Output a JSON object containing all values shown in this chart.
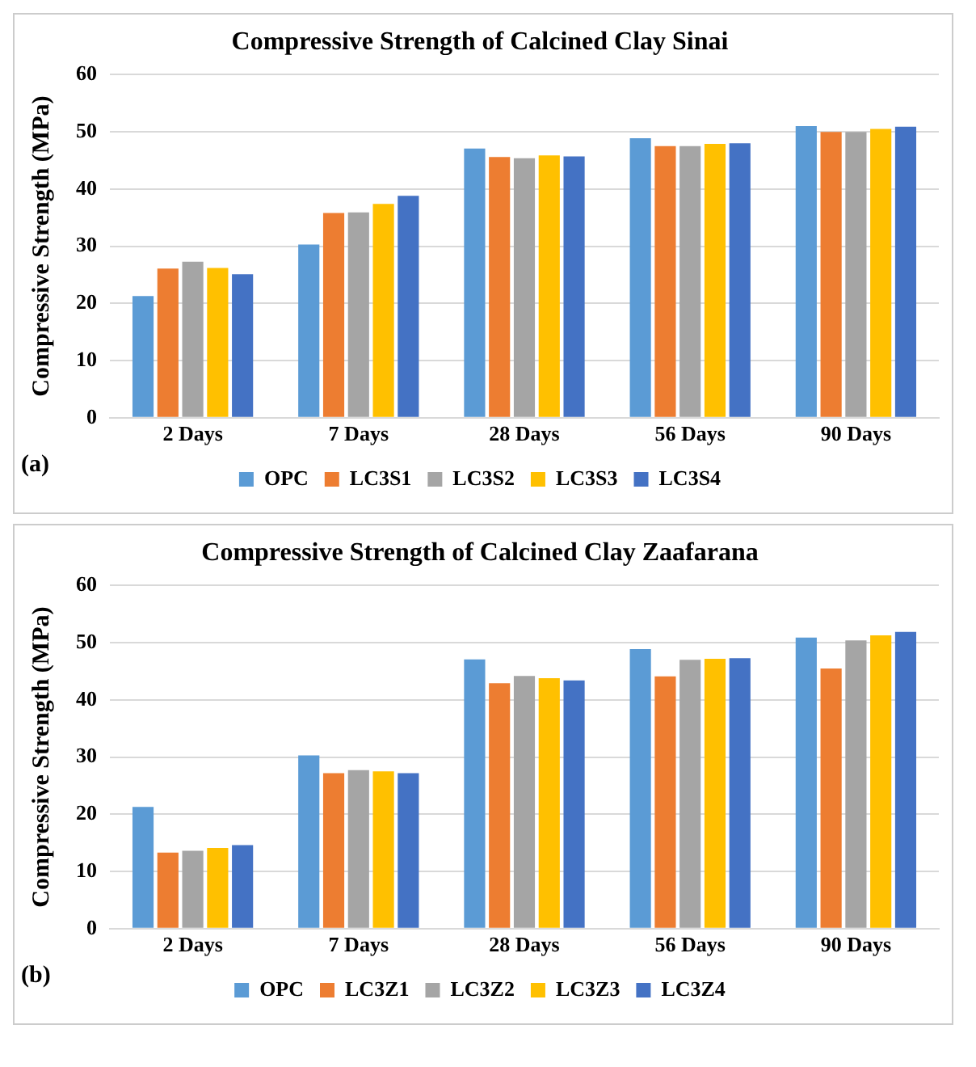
{
  "chart_data": [
    {
      "type": "bar",
      "title": "Compressive Strength of Calcined Clay Sinai",
      "ylabel": "Compressive Strength (MPa)",
      "annotations": [
        "(a)"
      ],
      "categories": [
        "2 Days",
        "7 Days",
        "28 Days",
        "56 Days",
        "90 Days"
      ],
      "ylim": [
        0,
        60
      ],
      "yticks": [
        0,
        10,
        20,
        30,
        40,
        50,
        60
      ],
      "grid": "y",
      "legend": "bottom",
      "series": [
        {
          "name": "OPC",
          "color": "#5b9bd5",
          "values": [
            21.3,
            30.3,
            47.1,
            48.9,
            51.0
          ]
        },
        {
          "name": "LC3S1",
          "color": "#ed7d31",
          "values": [
            26.1,
            35.8,
            45.6,
            47.5,
            50.0
          ]
        },
        {
          "name": "LC3S2",
          "color": "#a5a5a5",
          "values": [
            27.3,
            35.9,
            45.4,
            47.5,
            50.0
          ]
        },
        {
          "name": "LC3S3",
          "color": "#ffc000",
          "values": [
            26.2,
            37.4,
            45.9,
            47.9,
            50.5
          ]
        },
        {
          "name": "LC3S4",
          "color": "#4472c4",
          "values": [
            25.1,
            38.8,
            45.7,
            48.0,
            50.9
          ]
        }
      ]
    },
    {
      "type": "bar",
      "title": "Compressive Strength of Calcined Clay Zaafarana",
      "ylabel": "Compressive Strength (MPa)",
      "annotations": [
        "(b)"
      ],
      "categories": [
        "2 Days",
        "7 Days",
        "28 Days",
        "56 Days",
        "90 Days"
      ],
      "ylim": [
        0,
        60
      ],
      "yticks": [
        0,
        10,
        20,
        30,
        40,
        50,
        60
      ],
      "grid": "y",
      "legend": "bottom",
      "series": [
        {
          "name": "OPC",
          "color": "#5b9bd5",
          "values": [
            21.3,
            30.3,
            47.1,
            48.9,
            50.9
          ]
        },
        {
          "name": "LC3Z1",
          "color": "#ed7d31",
          "values": [
            13.3,
            27.2,
            42.9,
            44.1,
            45.5
          ]
        },
        {
          "name": "LC3Z2",
          "color": "#a5a5a5",
          "values": [
            13.6,
            27.7,
            44.2,
            47.0,
            50.4
          ]
        },
        {
          "name": "LC3Z3",
          "color": "#ffc000",
          "values": [
            14.1,
            27.5,
            43.8,
            47.2,
            51.3
          ]
        },
        {
          "name": "LC3Z4",
          "color": "#4472c4",
          "values": [
            14.6,
            27.2,
            43.4,
            47.3,
            51.9
          ]
        }
      ]
    }
  ]
}
